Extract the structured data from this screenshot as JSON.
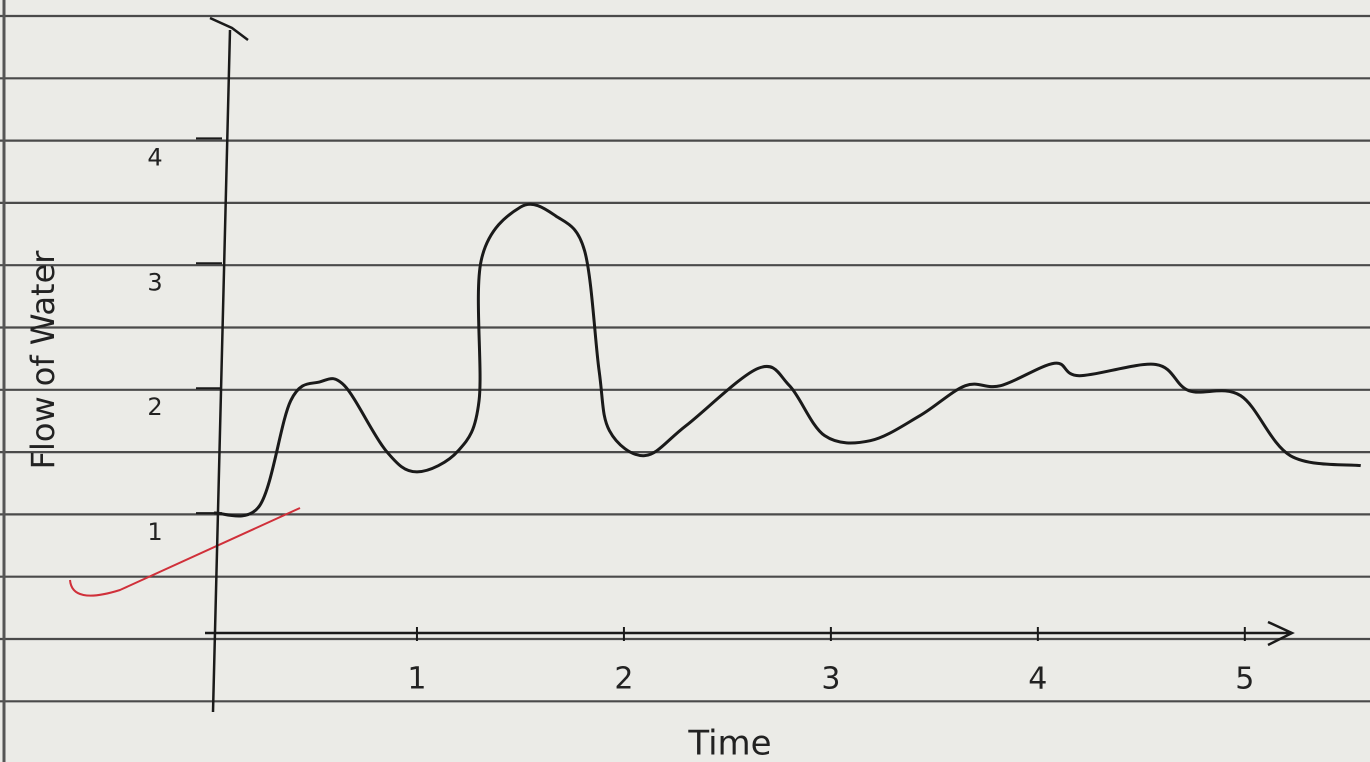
{
  "chart_data": {
    "type": "line",
    "x_label": "Time",
    "y_label": "Flow of Water",
    "x": [
      0.02,
      0.24,
      0.39,
      0.53,
      0.65,
      0.85,
      1.0,
      1.2,
      1.3,
      1.31,
      1.5,
      1.67,
      1.81,
      1.88,
      1.93,
      2.1,
      2.3,
      2.65,
      2.8,
      2.97,
      3.19,
      3.43,
      3.65,
      3.82,
      4.08,
      4.2,
      4.57,
      4.73,
      4.98,
      5.22,
      5.56
    ],
    "values": [
      1.0,
      1.06,
      1.9,
      2.05,
      2.02,
      1.5,
      1.33,
      1.5,
      1.9,
      3.02,
      3.45,
      3.38,
      3.1,
      2.14,
      1.66,
      1.46,
      1.7,
      2.16,
      2.02,
      1.62,
      1.58,
      1.78,
      2.02,
      2.02,
      2.2,
      2.1,
      2.19,
      1.98,
      1.94,
      1.46,
      1.38
    ],
    "color": "#1a1a1a",
    "xlim": [
      0,
      5.6
    ],
    "xticks": [
      1,
      2,
      3,
      4,
      5
    ],
    "ylim": [
      0,
      4.9
    ],
    "yticks": [
      1,
      2,
      3,
      4
    ],
    "grid": false
  }
}
